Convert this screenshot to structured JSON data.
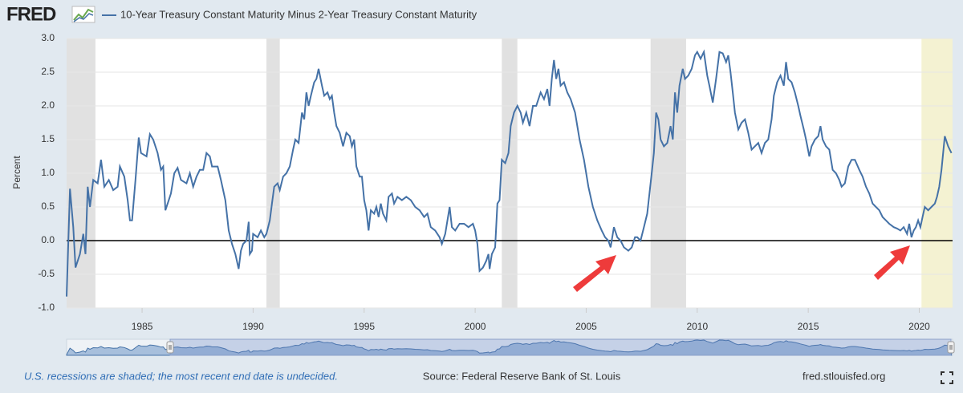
{
  "header": {
    "logo": "FRED"
  },
  "chart_data": {
    "type": "line",
    "ylabel": "Percent",
    "x": [
      1981.6,
      1981.75,
      1981.9,
      1982.0,
      1982.2,
      1982.35,
      1982.45,
      1982.55,
      1982.65,
      1982.8,
      1983.0,
      1983.15,
      1983.3,
      1983.5,
      1983.7,
      1983.9,
      1984.0,
      1984.2,
      1984.35,
      1984.45,
      1984.55,
      1984.7,
      1984.85,
      1984.95,
      1985.2,
      1985.35,
      1985.5,
      1985.7,
      1985.85,
      1985.95,
      1986.05,
      1986.2,
      1986.3,
      1986.45,
      1986.6,
      1986.75,
      1987.0,
      1987.15,
      1987.3,
      1987.45,
      1987.6,
      1987.75,
      1987.9,
      1988.05,
      1988.15,
      1988.4,
      1988.55,
      1988.75,
      1988.9,
      1989.05,
      1989.2,
      1989.35,
      1989.45,
      1989.55,
      1989.7,
      1989.8,
      1989.85,
      1989.95,
      1990.0,
      1990.2,
      1990.35,
      1990.5,
      1990.6,
      1990.75,
      1990.85,
      1990.95,
      1991.1,
      1991.2,
      1991.35,
      1991.5,
      1991.65,
      1991.8,
      1991.9,
      1992.05,
      1992.2,
      1992.3,
      1992.4,
      1992.5,
      1992.6,
      1992.75,
      1992.85,
      1992.95,
      1993.1,
      1993.2,
      1993.35,
      1993.45,
      1993.55,
      1993.65,
      1993.75,
      1993.9,
      1994.05,
      1994.2,
      1994.35,
      1994.45,
      1994.55,
      1994.65,
      1994.8,
      1994.9,
      1995.0,
      1995.1,
      1995.2,
      1995.3,
      1995.45,
      1995.55,
      1995.65,
      1995.75,
      1995.85,
      1996.0,
      1996.1,
      1996.25,
      1996.35,
      1996.5,
      1996.7,
      1996.9,
      1997.1,
      1997.3,
      1997.5,
      1997.7,
      1997.85,
      1998.0,
      1998.2,
      1998.4,
      1998.5,
      1998.65,
      1998.85,
      1998.95,
      1999.1,
      1999.3,
      1999.5,
      1999.7,
      1999.9,
      2000.0,
      2000.1,
      2000.2,
      2000.35,
      2000.5,
      2000.6,
      2000.65,
      2000.75,
      2000.9,
      2001.0,
      2001.1,
      2001.2,
      2001.35,
      2001.5,
      2001.6,
      2001.75,
      2001.9,
      2002.05,
      2002.15,
      2002.3,
      2002.45,
      2002.6,
      2002.75,
      2002.95,
      2003.1,
      2003.25,
      2003.35,
      2003.45,
      2003.55,
      2003.65,
      2003.75,
      2003.85,
      2004.0,
      2004.15,
      2004.3,
      2004.5,
      2004.7,
      2004.9,
      2005.1,
      2005.3,
      2005.5,
      2005.7,
      2005.85,
      2006.0,
      2006.1,
      2006.25,
      2006.4,
      2006.55,
      2006.7,
      2006.9,
      2007.05,
      2007.2,
      2007.3,
      2007.45,
      2007.6,
      2007.75,
      2007.85,
      2007.95,
      2008.05,
      2008.15,
      2008.25,
      2008.35,
      2008.5,
      2008.65,
      2008.8,
      2008.9,
      2009.0,
      2009.1,
      2009.2,
      2009.35,
      2009.45,
      2009.6,
      2009.75,
      2009.9,
      2010.0,
      2010.15,
      2010.3,
      2010.45,
      2010.55,
      2010.7,
      2010.85,
      2011.0,
      2011.15,
      2011.3,
      2011.4,
      2011.5,
      2011.6,
      2011.7,
      2011.85,
      2012.0,
      2012.15,
      2012.3,
      2012.45,
      2012.6,
      2012.75,
      2012.9,
      2013.05,
      2013.2,
      2013.35,
      2013.45,
      2013.6,
      2013.75,
      2013.9,
      2014.0,
      2014.1,
      2014.25,
      2014.4,
      2014.55,
      2014.65,
      2014.8,
      2014.9,
      2015.05,
      2015.15,
      2015.3,
      2015.45,
      2015.55,
      2015.65,
      2015.8,
      2015.95,
      2016.1,
      2016.25,
      2016.4,
      2016.5,
      2016.65,
      2016.8,
      2016.95,
      2017.1,
      2017.3,
      2017.45,
      2017.6,
      2017.75,
      2017.9,
      2018.05,
      2018.2,
      2018.35,
      2018.5,
      2018.65,
      2018.85,
      2019.0,
      2019.15,
      2019.3,
      2019.45,
      2019.55,
      2019.65,
      2019.75,
      2019.85,
      2019.95,
      2020.05,
      2020.15,
      2020.25,
      2020.4,
      2020.55,
      2020.7,
      2020.8,
      2020.9,
      2021.0,
      2021.15,
      2021.3,
      2021.45
    ],
    "series": [
      {
        "name": "10-Year Treasury Constant Maturity Minus 2-Year Treasury Constant Maturity",
        "color": "#4572a7",
        "values": [
          -0.83,
          0.77,
          0.2,
          -0.4,
          -0.2,
          0.1,
          -0.2,
          0.8,
          0.5,
          0.9,
          0.85,
          1.2,
          0.8,
          0.9,
          0.75,
          0.8,
          1.1,
          0.95,
          0.6,
          0.3,
          0.3,
          0.9,
          1.53,
          1.3,
          1.25,
          1.58,
          1.5,
          1.3,
          1.05,
          1.1,
          0.45,
          0.6,
          0.7,
          1.0,
          1.08,
          0.9,
          0.85,
          1.0,
          0.8,
          0.95,
          1.05,
          1.05,
          1.3,
          1.25,
          1.1,
          1.1,
          0.9,
          0.6,
          0.15,
          -0.05,
          -0.2,
          -0.42,
          -0.15,
          -0.05,
          0.0,
          0.28,
          -0.2,
          -0.15,
          0.1,
          0.05,
          0.15,
          0.05,
          0.1,
          0.3,
          0.55,
          0.8,
          0.85,
          0.75,
          0.95,
          1.0,
          1.1,
          1.35,
          1.5,
          1.45,
          1.9,
          1.8,
          2.2,
          2.0,
          2.15,
          2.35,
          2.4,
          2.55,
          2.3,
          2.15,
          2.2,
          2.1,
          2.15,
          1.9,
          1.7,
          1.6,
          1.4,
          1.6,
          1.55,
          1.4,
          1.5,
          1.1,
          0.95,
          0.95,
          0.6,
          0.45,
          0.15,
          0.45,
          0.4,
          0.5,
          0.35,
          0.55,
          0.4,
          0.3,
          0.65,
          0.7,
          0.55,
          0.65,
          0.6,
          0.65,
          0.6,
          0.5,
          0.45,
          0.35,
          0.4,
          0.2,
          0.15,
          0.05,
          -0.05,
          0.1,
          0.5,
          0.2,
          0.15,
          0.25,
          0.25,
          0.2,
          0.25,
          0.15,
          -0.05,
          -0.45,
          -0.4,
          -0.3,
          -0.2,
          -0.42,
          -0.2,
          -0.1,
          0.55,
          0.6,
          1.2,
          1.15,
          1.3,
          1.7,
          1.9,
          2.0,
          1.9,
          1.75,
          1.9,
          1.7,
          2.0,
          2.0,
          2.2,
          2.1,
          2.25,
          2.0,
          2.4,
          2.68,
          2.4,
          2.55,
          2.3,
          2.35,
          2.2,
          2.1,
          1.9,
          1.5,
          1.2,
          0.8,
          0.5,
          0.3,
          0.15,
          0.05,
          0.0,
          -0.1,
          0.2,
          0.05,
          0.0,
          -0.1,
          -0.15,
          -0.1,
          0.05,
          0.05,
          0.0,
          0.2,
          0.4,
          0.7,
          1.0,
          1.3,
          1.9,
          1.8,
          1.5,
          1.4,
          1.45,
          1.7,
          1.5,
          2.2,
          1.9,
          2.3,
          2.55,
          2.4,
          2.45,
          2.55,
          2.75,
          2.8,
          2.7,
          2.8,
          2.45,
          2.3,
          2.05,
          2.4,
          2.8,
          2.78,
          2.65,
          2.75,
          2.5,
          2.2,
          1.9,
          1.65,
          1.75,
          1.8,
          1.6,
          1.35,
          1.4,
          1.45,
          1.3,
          1.45,
          1.5,
          1.8,
          2.15,
          2.35,
          2.45,
          2.3,
          2.65,
          2.4,
          2.35,
          2.2,
          2.0,
          1.85,
          1.65,
          1.5,
          1.25,
          1.4,
          1.5,
          1.55,
          1.7,
          1.5,
          1.4,
          1.35,
          1.05,
          1.0,
          0.9,
          0.8,
          0.85,
          1.1,
          1.2,
          1.2,
          1.05,
          0.95,
          0.8,
          0.7,
          0.55,
          0.5,
          0.45,
          0.35,
          0.3,
          0.25,
          0.2,
          0.18,
          0.15,
          0.2,
          0.1,
          0.25,
          0.05,
          0.15,
          0.2,
          0.3,
          0.2,
          0.35,
          0.5,
          0.45,
          0.5,
          0.55,
          0.65,
          0.8,
          1.05,
          1.55,
          1.4,
          1.3
        ]
      }
    ],
    "xlim": [
      1981.6,
      2021.5
    ],
    "xticks": [
      1985,
      1990,
      1995,
      2000,
      2005,
      2010,
      2015,
      2020
    ],
    "ylim": [
      -1,
      3
    ],
    "yticks": [
      {
        "value": -1,
        "label": "-1.0"
      },
      {
        "value": -0.5,
        "label": "-0.5"
      },
      {
        "value": 0,
        "label": "0.0"
      },
      {
        "value": 0.5,
        "label": "0.5"
      },
      {
        "value": 1,
        "label": "1.0"
      },
      {
        "value": 1.5,
        "label": "1.5"
      },
      {
        "value": 2,
        "label": "2.0"
      },
      {
        "value": 2.5,
        "label": "2.5"
      },
      {
        "value": 3,
        "label": "3.0"
      }
    ],
    "grid": true,
    "recessions": [
      [
        1981.6,
        1982.9
      ],
      [
        1990.6,
        1991.2
      ],
      [
        2001.2,
        2001.9
      ],
      [
        2007.9,
        2009.5
      ],
      [
        2020.1,
        null
      ]
    ],
    "recession_color": "#e1e1e1",
    "current_recession_color": "#f4f2d2"
  },
  "footer": {
    "note": "U.S. recessions are shaded; the most recent end date is undecided.",
    "source": "Source: Federal Reserve Bank of St. Louis",
    "site": "fred.stlouisfed.org"
  }
}
